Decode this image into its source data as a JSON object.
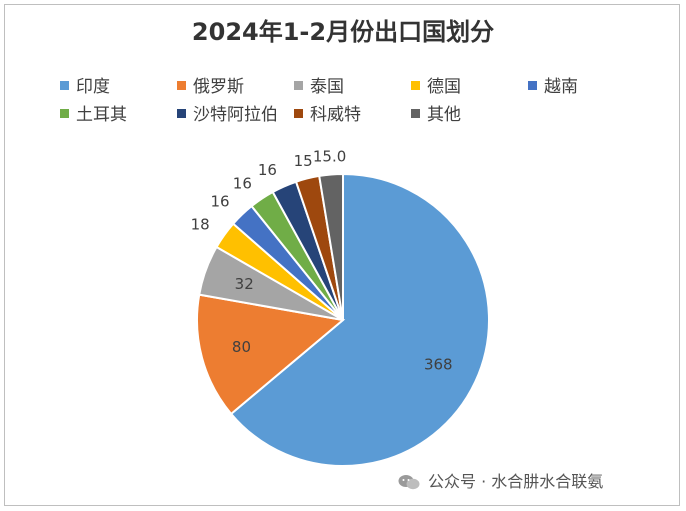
{
  "chart_data": {
    "type": "pie",
    "title": "2024年1-2月份出口国划分",
    "categories": [
      "印度",
      "俄罗斯",
      "泰国",
      "德国",
      "越南",
      "土耳其",
      "沙特阿拉伯",
      "科威特",
      "其他"
    ],
    "values": [
      368,
      80,
      32,
      18,
      16,
      16,
      16,
      15,
      15.0
    ],
    "value_labels": [
      "368",
      "80",
      "32",
      "18",
      "16",
      "16",
      "16",
      "15",
      "15.0"
    ],
    "colors": [
      "#5b9bd5",
      "#ed7d31",
      "#a5a5a5",
      "#ffc000",
      "#4472c4",
      "#70ad47",
      "#264478",
      "#9e480e",
      "#636363"
    ],
    "legend_position": "top"
  },
  "watermark": "公众号 · 水合肼水合联氨"
}
